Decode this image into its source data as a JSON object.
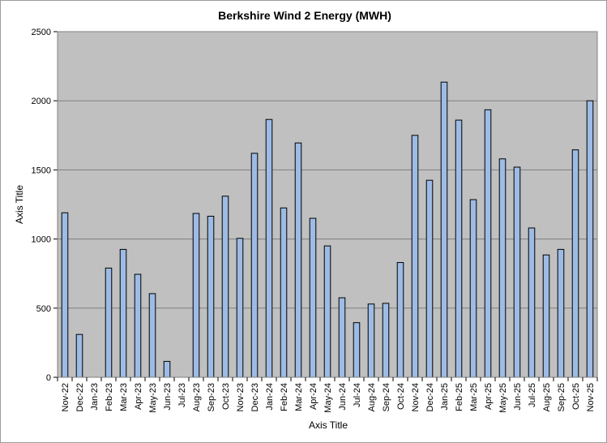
{
  "chart_data": {
    "type": "bar",
    "title": "Berkshire Wind 2 Energy (MWH)",
    "xlabel": "Axis Title",
    "ylabel": "Axis Title",
    "ylim": [
      0,
      2500
    ],
    "yticks": [
      0,
      500,
      1000,
      1500,
      2000,
      2500
    ],
    "grid": true,
    "legend": "none",
    "categories": [
      "Nov-22",
      "Dec-22",
      "Jan-23",
      "Feb-23",
      "Mar-23",
      "Apr-23",
      "May-23",
      "Jun-23",
      "Jul-23",
      "Aug-23",
      "Sep-23",
      "Oct-23",
      "Nov-23",
      "Dec-23",
      "Jan-24",
      "Feb-24",
      "Mar-24",
      "Apr-24",
      "May-24",
      "Jun-24",
      "Jul-24",
      "Aug-24",
      "Sep-24",
      "Oct-24",
      "Nov-24",
      "Dec-24",
      "Jan-25",
      "Feb-25",
      "Mar-25",
      "Apr-25",
      "May-25",
      "Jun-25",
      "Jul-25",
      "Aug-25",
      "Sep-25",
      "Oct-25",
      "Nov-25"
    ],
    "values": [
      1190,
      310,
      0,
      790,
      925,
      745,
      605,
      115,
      0,
      1185,
      1165,
      1310,
      1005,
      1620,
      1865,
      1225,
      1695,
      1150,
      950,
      575,
      395,
      530,
      535,
      830,
      1750,
      1425,
      2135,
      1860,
      1285,
      1935,
      1580,
      1520,
      1080,
      885,
      925,
      1645,
      2000
    ],
    "colors": {
      "plot_bg": "#c0c0c0",
      "bar_fill": "#9dbbe4",
      "bar_stroke": "#000000",
      "grid": "#7f7f7f"
    }
  }
}
